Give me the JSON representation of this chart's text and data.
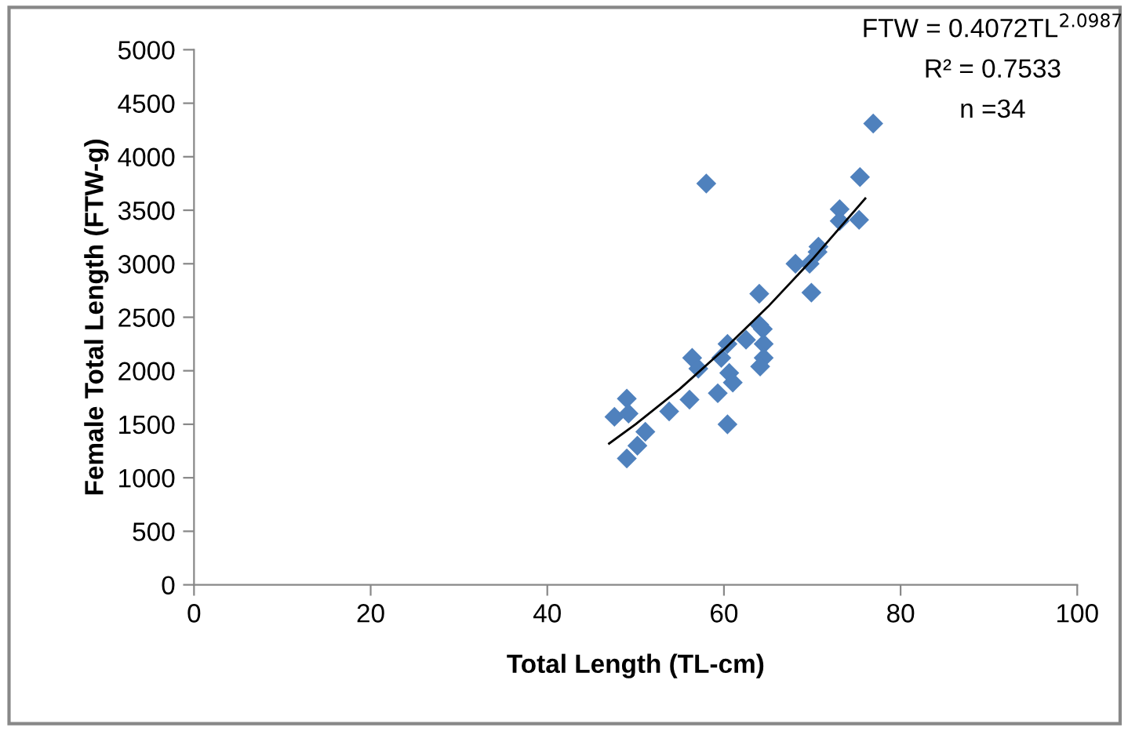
{
  "chart_data": {
    "type": "scatter",
    "xlabel": "Total Length (TL-cm)",
    "ylabel": "Female Total Length (FTW-g)",
    "xlim": [
      0,
      100
    ],
    "xticks": [
      0,
      20,
      40,
      60,
      80,
      100
    ],
    "ylim": [
      0,
      5000
    ],
    "yticks": [
      0,
      500,
      1000,
      1500,
      2000,
      2500,
      3000,
      3500,
      4000,
      4500,
      5000
    ],
    "grid": false,
    "legend": false,
    "marker": "diamond",
    "series": [
      {
        "color": "#4f81bd",
        "x": [
          58.0,
          75.4,
          76.9,
          73.1,
          73.1,
          75.3,
          70.7,
          70.6,
          68.1,
          69.7,
          69.9,
          64.0,
          64.0,
          64.4,
          62.5,
          64.5,
          64.5,
          64.1,
          60.4,
          59.7,
          60.6,
          61.0,
          59.3,
          56.4,
          57.1,
          56.1,
          53.8,
          60.4,
          49.0,
          47.6,
          49.2,
          51.1,
          50.2,
          49.0
        ],
        "values": [
          3750,
          3810,
          4310,
          3510,
          3400,
          3410,
          3160,
          3110,
          3000,
          3000,
          2730,
          2720,
          2430,
          2390,
          2290,
          2250,
          2120,
          2040,
          2250,
          2120,
          1980,
          1890,
          1790,
          2120,
          2020,
          1730,
          1620,
          1500,
          1740,
          1570,
          1600,
          1430,
          1300,
          1180
        ]
      },
      {
        "type": "line",
        "color": "#000000",
        "line_style": "solid",
        "marker": "none",
        "x": [
          47,
          50,
          55,
          60,
          65,
          70,
          76
        ],
        "values": [
          1320,
          1500,
          1830,
          2200,
          2600,
          3040,
          3610
        ]
      }
    ],
    "annotations": [
      "FTW = 0.4072TL$^{2.0987}$",
      "R² = 0.7533",
      "n =34"
    ]
  }
}
